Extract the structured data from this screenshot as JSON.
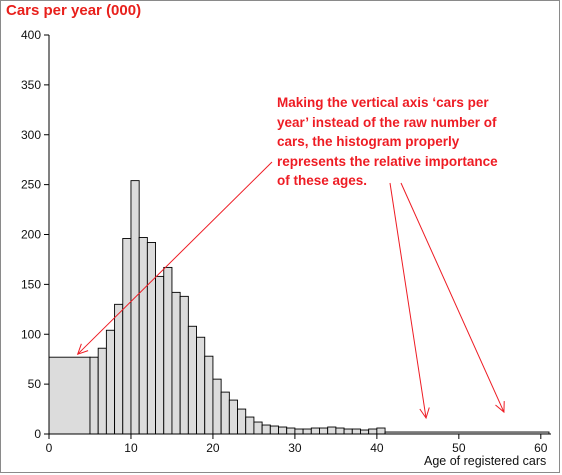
{
  "chart_data": {
    "type": "bar",
    "title": "Cars per year (000)",
    "xlabel": "Age of registered cars",
    "ylabel": "",
    "xlim": [
      0,
      61
    ],
    "ylim": [
      0,
      400
    ],
    "x_ticks": [
      0,
      10,
      20,
      30,
      40,
      50,
      60
    ],
    "y_ticks": [
      0,
      50,
      100,
      150,
      200,
      250,
      300,
      350,
      400
    ],
    "grid": false,
    "bar_color": "#dcdcdc",
    "annotation_color": "#ee1c24",
    "title_color": "#e8201c",
    "bins": [
      {
        "x0": 0,
        "x1": 5,
        "value": 77
      },
      {
        "x0": 5,
        "x1": 6,
        "value": 77
      },
      {
        "x0": 6,
        "x1": 7,
        "value": 86
      },
      {
        "x0": 7,
        "x1": 8,
        "value": 104
      },
      {
        "x0": 8,
        "x1": 9,
        "value": 130
      },
      {
        "x0": 9,
        "x1": 10,
        "value": 196
      },
      {
        "x0": 10,
        "x1": 11,
        "value": 254
      },
      {
        "x0": 11,
        "x1": 12,
        "value": 197
      },
      {
        "x0": 12,
        "x1": 13,
        "value": 192
      },
      {
        "x0": 13,
        "x1": 14,
        "value": 158
      },
      {
        "x0": 14,
        "x1": 15,
        "value": 167
      },
      {
        "x0": 15,
        "x1": 16,
        "value": 142
      },
      {
        "x0": 16,
        "x1": 17,
        "value": 138
      },
      {
        "x0": 17,
        "x1": 18,
        "value": 108
      },
      {
        "x0": 18,
        "x1": 19,
        "value": 97
      },
      {
        "x0": 19,
        "x1": 20,
        "value": 78
      },
      {
        "x0": 20,
        "x1": 21,
        "value": 55
      },
      {
        "x0": 21,
        "x1": 22,
        "value": 42
      },
      {
        "x0": 22,
        "x1": 23,
        "value": 34
      },
      {
        "x0": 23,
        "x1": 24,
        "value": 25
      },
      {
        "x0": 24,
        "x1": 25,
        "value": 17
      },
      {
        "x0": 25,
        "x1": 26,
        "value": 12
      },
      {
        "x0": 26,
        "x1": 27,
        "value": 9
      },
      {
        "x0": 27,
        "x1": 28,
        "value": 8
      },
      {
        "x0": 28,
        "x1": 29,
        "value": 7
      },
      {
        "x0": 29,
        "x1": 30,
        "value": 6
      },
      {
        "x0": 30,
        "x1": 31,
        "value": 5
      },
      {
        "x0": 31,
        "x1": 32,
        "value": 5
      },
      {
        "x0": 32,
        "x1": 33,
        "value": 6
      },
      {
        "x0": 33,
        "x1": 34,
        "value": 6
      },
      {
        "x0": 34,
        "x1": 35,
        "value": 7
      },
      {
        "x0": 35,
        "x1": 36,
        "value": 6
      },
      {
        "x0": 36,
        "x1": 37,
        "value": 5
      },
      {
        "x0": 37,
        "x1": 38,
        "value": 5
      },
      {
        "x0": 38,
        "x1": 39,
        "value": 4
      },
      {
        "x0": 39,
        "x1": 40,
        "value": 5
      },
      {
        "x0": 40,
        "x1": 41,
        "value": 6
      },
      {
        "x0": 41,
        "x1": 61,
        "value": 2
      }
    ],
    "annotations": [
      {
        "text": "Making the vertical axis ‘cars per\nyear’ instead of the raw number of\ncars, the histogram properly\nrepresents the relative importance\nof these ages.",
        "arrows_to": [
          [
            3.5,
            80
          ],
          [
            46,
            16
          ],
          [
            55.5,
            22
          ]
        ]
      }
    ]
  }
}
